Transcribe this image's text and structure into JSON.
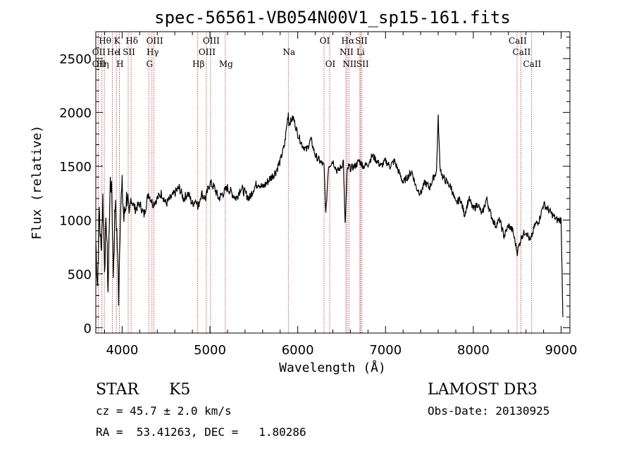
{
  "chart_data": {
    "type": "line",
    "title": "spec-56561-VB054N00V1_sp15-161.fits",
    "xlabel": "Wavelength (Å)",
    "ylabel": "Flux (relative)",
    "xlim": [
      3700,
      9100
    ],
    "ylim": [
      -50,
      2750
    ],
    "xticks": [
      4000,
      5000,
      6000,
      7000,
      8000,
      9000
    ],
    "yticks": [
      0,
      500,
      1000,
      1500,
      2000,
      2500
    ],
    "series": [
      {
        "name": "spectrum",
        "x": [
          3700,
          3720,
          3740,
          3760,
          3780,
          3800,
          3820,
          3840,
          3860,
          3880,
          3900,
          3920,
          3940,
          3960,
          3980,
          4000,
          4020,
          4040,
          4060,
          4080,
          4100,
          4150,
          4200,
          4250,
          4300,
          4350,
          4400,
          4450,
          4500,
          4550,
          4600,
          4650,
          4700,
          4750,
          4800,
          4850,
          4861,
          4900,
          4950,
          5000,
          5050,
          5100,
          5150,
          5200,
          5250,
          5300,
          5350,
          5400,
          5450,
          5500,
          5550,
          5600,
          5650,
          5700,
          5750,
          5800,
          5850,
          5893,
          5900,
          5950,
          6000,
          6050,
          6100,
          6150,
          6200,
          6250,
          6300,
          6320,
          6350,
          6400,
          6450,
          6500,
          6520,
          6540,
          6563,
          6580,
          6600,
          6650,
          6700,
          6750,
          6800,
          6850,
          6900,
          6950,
          7000,
          7050,
          7100,
          7150,
          7200,
          7250,
          7300,
          7350,
          7400,
          7450,
          7500,
          7550,
          7580,
          7600,
          7620,
          7650,
          7700,
          7750,
          7800,
          7850,
          7900,
          7950,
          8000,
          8050,
          8100,
          8150,
          8200,
          8250,
          8300,
          8350,
          8400,
          8450,
          8500,
          8550,
          8600,
          8650,
          8700,
          8750,
          8800,
          8850,
          8900,
          8950,
          9000,
          9020
        ],
        "y": [
          800,
          400,
          1100,
          700,
          1200,
          600,
          1000,
          350,
          1250,
          1350,
          500,
          1150,
          900,
          300,
          1100,
          1300,
          1000,
          1150,
          1250,
          950,
          1200,
          1100,
          1150,
          1050,
          1250,
          1150,
          1200,
          1250,
          1150,
          1200,
          1250,
          1300,
          1200,
          1250,
          1150,
          1200,
          1100,
          1250,
          1200,
          1350,
          1300,
          1200,
          1250,
          1300,
          1250,
          1200,
          1300,
          1250,
          1200,
          1300,
          1350,
          1300,
          1350,
          1400,
          1450,
          1550,
          1700,
          2000,
          1900,
          1950,
          1800,
          1700,
          1650,
          1750,
          1600,
          1550,
          1500,
          1050,
          1500,
          1550,
          1450,
          1500,
          1550,
          950,
          1450,
          1500,
          1480,
          1500,
          1550,
          1500,
          1520,
          1600,
          1550,
          1500,
          1550,
          1500,
          1550,
          1450,
          1350,
          1400,
          1450,
          1300,
          1250,
          1350,
          1300,
          1400,
          1450,
          1950,
          1500,
          1400,
          1350,
          1300,
          1150,
          1200,
          1050,
          1200,
          1100,
          1150,
          1050,
          1200,
          1050,
          950,
          1000,
          850,
          950,
          900,
          700,
          850,
          900,
          800,
          950,
          1000,
          1150,
          1100,
          1050,
          1000,
          1000,
          100
        ]
      }
    ],
    "line_marks": [
      {
        "name": "H-eta-oii",
        "x": 3727,
        "label": "OII"
      },
      {
        "name": "H-delta-eta",
        "x": 3770,
        "label": "Hη"
      },
      {
        "name": "H-theta",
        "x": 3797,
        "label": "Hθ"
      },
      {
        "name": "K",
        "x": 3934,
        "label": "K"
      },
      {
        "name": "H-line",
        "x": 3968,
        "label": "H"
      },
      {
        "name": "He",
        "x": 3889,
        "label": "He"
      },
      {
        "name": "S-II-a",
        "x": 4069,
        "label": "SII"
      },
      {
        "name": "H-delta",
        "x": 4102,
        "label": "Hδ"
      },
      {
        "name": "G-band",
        "x": 4304,
        "label": "G"
      },
      {
        "name": "H-gamma",
        "x": 4340,
        "label": "Hγ"
      },
      {
        "name": "O-III-a",
        "x": 4363,
        "label": "OIII"
      },
      {
        "name": "H-beta",
        "x": 4861,
        "label": "Hβ"
      },
      {
        "name": "O-III-b",
        "x": 4959,
        "label": "OIII"
      },
      {
        "name": "O-III-c",
        "x": 5007,
        "label": "OIII"
      },
      {
        "name": "Mg",
        "x": 5175,
        "label": "Mg"
      },
      {
        "name": "Na",
        "x": 5893,
        "label": "Na"
      },
      {
        "name": "O-I-a",
        "x": 6300,
        "label": "OI"
      },
      {
        "name": "O-I-b",
        "x": 6364,
        "label": "OI"
      },
      {
        "name": "N-II-a",
        "x": 6548,
        "label": "NII"
      },
      {
        "name": "H-alpha",
        "x": 6563,
        "label": "Hα"
      },
      {
        "name": "N-II-b",
        "x": 6583,
        "label": "NII"
      },
      {
        "name": "Li",
        "x": 6708,
        "label": "Li"
      },
      {
        "name": "S-II-b",
        "x": 6716,
        "label": "SII"
      },
      {
        "name": "S-II-c",
        "x": 6731,
        "label": "SII"
      },
      {
        "name": "Ca-II-a",
        "x": 8498,
        "label": "CaII"
      },
      {
        "name": "Ca-II-b",
        "x": 8542,
        "label": "CaII"
      },
      {
        "name": "Ca-II-c",
        "x": 8662,
        "label": "CaII"
      }
    ]
  },
  "top_labels": {
    "row1": [
      {
        "x": 3797,
        "text": "Hθ"
      },
      {
        "x": 3934,
        "text": "K"
      },
      {
        "x": 4102,
        "text": "Hδ"
      },
      {
        "x": 4363,
        "text": "OIII"
      },
      {
        "x": 5007,
        "text": "OIII"
      },
      {
        "x": 6300,
        "text": "OI"
      },
      {
        "x": 6563,
        "text": "Hα"
      },
      {
        "x": 6716,
        "text": "SII"
      },
      {
        "x": 8498,
        "text": "CaII"
      }
    ],
    "row2": [
      {
        "x": 3727,
        "text": "OII"
      },
      {
        "x": 3889,
        "text": "He"
      },
      {
        "x": 3960,
        "text": "I"
      },
      {
        "x": 4069,
        "text": "SII"
      },
      {
        "x": 4340,
        "text": "Hγ"
      },
      {
        "x": 4959,
        "text": "OIII"
      },
      {
        "x": 5893,
        "text": "Na"
      },
      {
        "x": 6548,
        "text": "NII"
      },
      {
        "x": 6708,
        "text": "Li"
      },
      {
        "x": 8542,
        "text": "CaII"
      }
    ],
    "row3": [
      {
        "x": 3727,
        "text": "OII"
      },
      {
        "x": 3770,
        "text": "Hη"
      },
      {
        "x": 3968,
        "text": "H"
      },
      {
        "x": 4304,
        "text": "G"
      },
      {
        "x": 4861,
        "text": "Hβ"
      },
      {
        "x": 5175,
        "text": "Mg"
      },
      {
        "x": 6364,
        "text": "OI"
      },
      {
        "x": 6583,
        "text": "NII"
      },
      {
        "x": 6731,
        "text": "SII"
      },
      {
        "x": 8662,
        "text": "CaII"
      }
    ]
  },
  "info": {
    "object_class": "STAR",
    "subclass": "K5",
    "survey": "LAMOST DR3",
    "cz": "cz = 45.7 ± 2.0 km/s",
    "obs_date": "Obs-Date: 20130925",
    "coords": "RA =  53.41263, DEC =   1.80286"
  },
  "colors": {
    "line_mark": "#b03030",
    "spectrum": "#000000",
    "axes": "#000000"
  }
}
